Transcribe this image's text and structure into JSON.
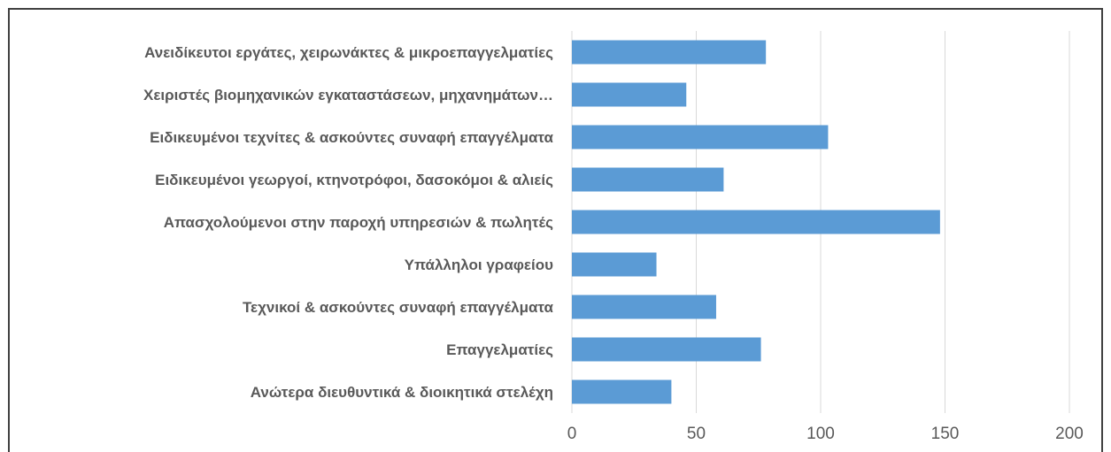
{
  "chart_data": {
    "type": "bar",
    "orientation": "horizontal",
    "categories": [
      "Ανειδίκευτοι εργάτες, χειρωνάκτες & μικροεπαγγελματίες",
      "Χειριστές βιομηχανικών εγκαταστάσεων, μηχανημάτων…",
      "Ειδικευμένοι τεχνίτες & ασκούντες συναφή επαγγέλματα",
      "Ειδικευμένοι γεωργοί, κτηνοτρόφοι,  δασοκόμοι & αλιείς",
      "Απασχολούμενοι στην παροχή υπηρεσιών & πωλητές",
      "Υπάλληλοι γραφείου",
      "Τεχνικοί & ασκούντες συναφή επαγγέλματα",
      "Επαγγελματίες",
      "Ανώτερα διευθυντικά & διοικητικά στελέχη"
    ],
    "values": [
      78,
      46,
      103,
      61,
      148,
      34,
      58,
      76,
      40
    ],
    "xlim": [
      0,
      200
    ],
    "xticks": [
      "0",
      "50",
      "100",
      "150",
      "200"
    ],
    "title": "",
    "xlabel": "",
    "ylabel": "",
    "grid": "vertical",
    "legend": "none",
    "bar_color": "#5b9bd5",
    "grid_color": "#d9d9d9",
    "text_color": "#595959"
  }
}
